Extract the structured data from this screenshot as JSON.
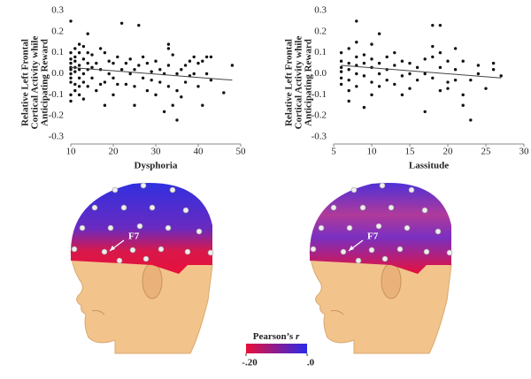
{
  "chart_data": [
    {
      "type": "scatter",
      "xlabel": "Dysphoria",
      "ylabel": [
        "Relative Left Frontal",
        "Cortical Activity while",
        "Anticipating Reward"
      ],
      "x": [
        10,
        10,
        10,
        10,
        10,
        10,
        10,
        10,
        10,
        10,
        10,
        11,
        11,
        11,
        11,
        11,
        11,
        11,
        12,
        12,
        12,
        12,
        12,
        12,
        12,
        13,
        13,
        13,
        13,
        13,
        14,
        14,
        14,
        14,
        14,
        15,
        15,
        15,
        16,
        16,
        17,
        17,
        17,
        18,
        18,
        18,
        19,
        19,
        20,
        20,
        20,
        21,
        21,
        22,
        22,
        23,
        23,
        24,
        24,
        25,
        25,
        25,
        26,
        26,
        27,
        27,
        28,
        28,
        29,
        29,
        30,
        30,
        31,
        31,
        32,
        32,
        33,
        33,
        33,
        33,
        34,
        34,
        35,
        35,
        35,
        36,
        36,
        37,
        37,
        38,
        38,
        39,
        39,
        40,
        40,
        41,
        41,
        42,
        42,
        43,
        43,
        46,
        48
      ],
      "values": [
        0.25,
        0.1,
        0.07,
        0.05,
        0.03,
        0.02,
        0,
        -0.02,
        -0.04,
        -0.1,
        -0.13,
        0.12,
        0.08,
        0.06,
        0.03,
        0.01,
        -0.05,
        -0.08,
        0.14,
        0.1,
        0.04,
        0.02,
        -0.02,
        -0.06,
        -0.1,
        0.13,
        0.07,
        0,
        -0.04,
        -0.12,
        0.19,
        0.1,
        0.05,
        0.02,
        -0.06,
        0.09,
        0.03,
        -0.02,
        0.05,
        -0.08,
        0.12,
        0.02,
        -0.05,
        0.1,
        -0.04,
        -0.15,
        0,
        0.06,
        0.05,
        -0.02,
        -0.1,
        0.08,
        -0.05,
        0.24,
        0.02,
        -0.05,
        0.05,
        0.07,
        0,
        0.02,
        -0.06,
        -0.15,
        0.23,
        0.04,
        0.08,
        -0.02,
        0.05,
        -0.08,
        -0.03,
        0.01,
        0.06,
        -0.1,
        0.02,
        -0.04,
        0,
        -0.18,
        0.14,
        0.12,
        0.04,
        -0.06,
        0.09,
        -0.15,
        0,
        -0.08,
        -0.22,
        0.02,
        -0.11,
        0.04,
        -0.04,
        0.06,
        -0.01,
        0.08,
        0,
        0.05,
        -0.06,
        0.06,
        -0.15,
        0.08,
        0,
        0.08,
        -0.03,
        -0.09,
        0.04
      ],
      "color": "#111111",
      "trendline": {
        "x": [
          10,
          48
        ],
        "values": [
          0.03,
          -0.03
        ]
      },
      "xlim": [
        10,
        50
      ],
      "xticks": [
        10,
        20,
        30,
        40,
        50
      ],
      "ylim": [
        -0.3,
        0.3
      ],
      "yticks": [
        0.3,
        0.2,
        0.1,
        {
          "value": 0,
          "label": "0.0"
        },
        -0.1,
        -0.2,
        -0.3
      ]
    },
    {
      "type": "scatter",
      "xlabel": "Lassitude",
      "ylabel": [
        "Relative Left Frontal",
        "Cortical Activity while",
        "Anticipating Reward"
      ],
      "x": [
        6,
        6,
        6,
        6,
        6,
        6,
        7,
        7,
        7,
        7,
        7,
        7,
        8,
        8,
        8,
        8,
        8,
        8,
        9,
        9,
        9,
        9,
        10,
        10,
        10,
        10,
        10,
        11,
        11,
        11,
        11,
        12,
        12,
        12,
        13,
        13,
        13,
        14,
        14,
        14,
        15,
        15,
        15,
        16,
        16,
        17,
        17,
        17,
        18,
        18,
        18,
        18,
        19,
        19,
        19,
        19,
        20,
        20,
        20,
        21,
        21,
        21,
        22,
        22,
        22,
        23,
        23,
        24,
        24,
        25,
        26,
        26,
        27
      ],
      "values": [
        0.1,
        0.06,
        0.03,
        0.01,
        -0.02,
        -0.05,
        0.12,
        0.05,
        0.02,
        -0.03,
        -0.08,
        -0.13,
        0.25,
        0.15,
        0.08,
        0.04,
        0,
        -0.06,
        0.09,
        0.05,
        -0.01,
        -0.16,
        0.14,
        0.07,
        0.03,
        -0.04,
        -0.1,
        0.19,
        0.05,
        0,
        -0.06,
        0.08,
        0.02,
        -0.03,
        0.1,
        0.04,
        -0.05,
        0.06,
        -0.01,
        -0.1,
        0.05,
        0,
        -0.07,
        0.03,
        -0.03,
        0.07,
        -0.18,
        0,
        0.23,
        0.13,
        0.08,
        -0.02,
        0.23,
        0.1,
        0.03,
        -0.08,
        0.06,
        -0.04,
        -0.07,
        0.12,
        0.02,
        -0.03,
        0.06,
        -0.1,
        -0.15,
        -0.03,
        -0.22,
        0.04,
        0,
        -0.07,
        0.02,
        0.05,
        -0.01
      ],
      "color": "#111111",
      "trendline": {
        "x": [
          6,
          27
        ],
        "values": [
          0.04,
          -0.02
        ]
      },
      "xlim": [
        5,
        30
      ],
      "xticks": [
        5,
        10,
        15,
        20,
        25,
        30
      ],
      "ylim": [
        -0.3,
        0.3
      ],
      "yticks": [
        0.3,
        0.2,
        0.1,
        {
          "value": 0,
          "label": "0.0"
        },
        -0.1,
        -0.2,
        -0.3
      ]
    }
  ],
  "heads": [
    {
      "electrode_label": "F7"
    },
    {
      "electrode_label": "F7"
    }
  ],
  "colorbar": {
    "title": "Pearson’s ",
    "title_symbol": "r",
    "colors": [
      "#e8103a",
      "#2a2ae8"
    ],
    "lim": [
      -0.2,
      0
    ],
    "ticks": [
      {
        "value": -0.2,
        "label": "-.20"
      },
      {
        "value": 0,
        "label": ".0"
      }
    ]
  }
}
